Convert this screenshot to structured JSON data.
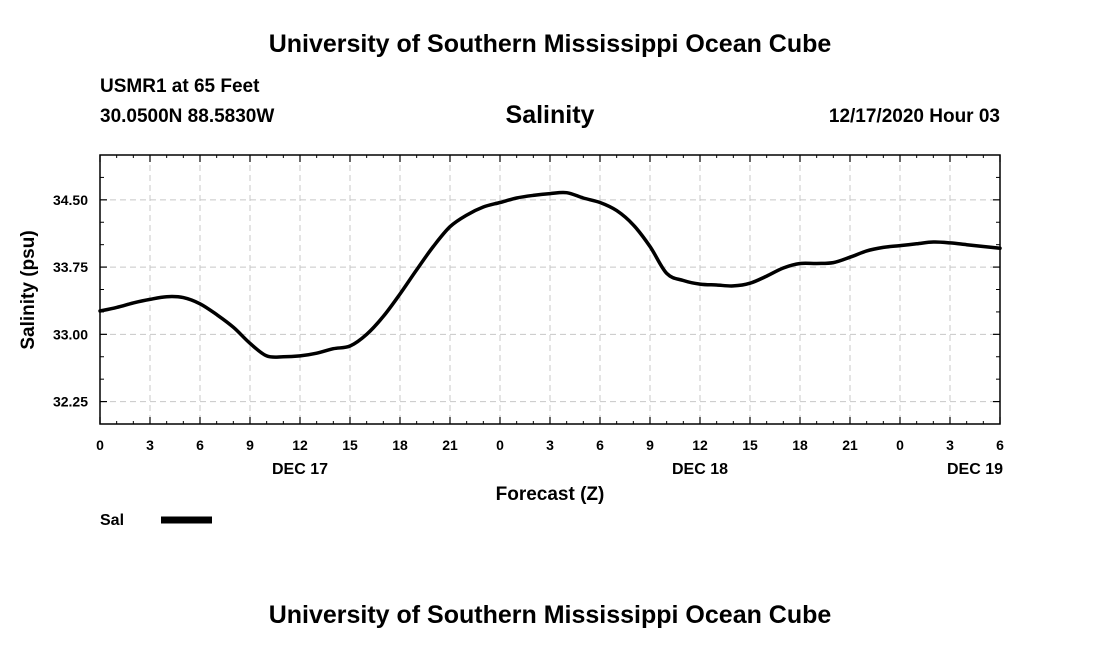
{
  "header": {
    "title_top": "University of Southern Mississippi Ocean Cube",
    "station": "USMR1 at 65 Feet",
    "coords": "30.0500N 88.5830W",
    "timestamp": "12/17/2020 Hour 03"
  },
  "footer": {
    "title_bottom": "University of Southern Mississippi Ocean Cube"
  },
  "chart_data": {
    "type": "line",
    "title": "Salinity",
    "xlabel": "Forecast (Z)",
    "ylabel": "Salinity (psu)",
    "xlim": [
      0,
      54
    ],
    "ylim": [
      32.0,
      35.0
    ],
    "grid": true,
    "x_ticks": [
      {
        "x": 0,
        "label": "0"
      },
      {
        "x": 3,
        "label": "3"
      },
      {
        "x": 6,
        "label": "6"
      },
      {
        "x": 9,
        "label": "9"
      },
      {
        "x": 12,
        "label": "12"
      },
      {
        "x": 15,
        "label": "15"
      },
      {
        "x": 18,
        "label": "18"
      },
      {
        "x": 21,
        "label": "21"
      },
      {
        "x": 24,
        "label": "0"
      },
      {
        "x": 27,
        "label": "3"
      },
      {
        "x": 30,
        "label": "6"
      },
      {
        "x": 33,
        "label": "9"
      },
      {
        "x": 36,
        "label": "12"
      },
      {
        "x": 39,
        "label": "15"
      },
      {
        "x": 42,
        "label": "18"
      },
      {
        "x": 45,
        "label": "21"
      },
      {
        "x": 48,
        "label": "0"
      },
      {
        "x": 51,
        "label": "3"
      },
      {
        "x": 54,
        "label": "6"
      }
    ],
    "date_labels": [
      {
        "x": 12,
        "label": "DEC 17"
      },
      {
        "x": 36,
        "label": "DEC 18"
      },
      {
        "x": 52.5,
        "label": "DEC 19"
      }
    ],
    "y_ticks": [
      {
        "y": 32.25,
        "label": "32.25"
      },
      {
        "y": 33.0,
        "label": "33.00"
      },
      {
        "y": 33.75,
        "label": "33.75"
      },
      {
        "y": 34.5,
        "label": "34.50"
      }
    ],
    "legend": {
      "label": "Sal",
      "position": "bottom-left"
    },
    "series": [
      {
        "name": "Sal",
        "x": [
          0,
          1,
          2,
          3,
          4,
          5,
          6,
          7,
          8,
          9,
          10,
          11,
          12,
          13,
          14,
          15,
          16,
          17,
          18,
          19,
          20,
          21,
          22,
          23,
          24,
          25,
          26,
          27,
          28,
          29,
          30,
          31,
          32,
          33,
          34,
          35,
          36,
          37,
          38,
          39,
          40,
          41,
          42,
          43,
          44,
          45,
          46,
          47,
          48,
          49,
          50,
          51,
          52,
          53,
          54
        ],
        "values": [
          33.26,
          33.3,
          33.35,
          33.39,
          33.42,
          33.41,
          33.34,
          33.22,
          33.08,
          32.9,
          32.76,
          32.75,
          32.76,
          32.79,
          32.84,
          32.87,
          33.0,
          33.2,
          33.45,
          33.72,
          33.98,
          34.2,
          34.33,
          34.42,
          34.47,
          34.52,
          34.55,
          34.57,
          34.58,
          34.52,
          34.47,
          34.38,
          34.22,
          33.98,
          33.68,
          33.6,
          33.56,
          33.55,
          33.54,
          33.57,
          33.65,
          33.74,
          33.79,
          33.79,
          33.8,
          33.86,
          33.93,
          33.97,
          33.99,
          34.01,
          34.03,
          34.02,
          34.0,
          33.98,
          33.96
        ]
      }
    ]
  }
}
